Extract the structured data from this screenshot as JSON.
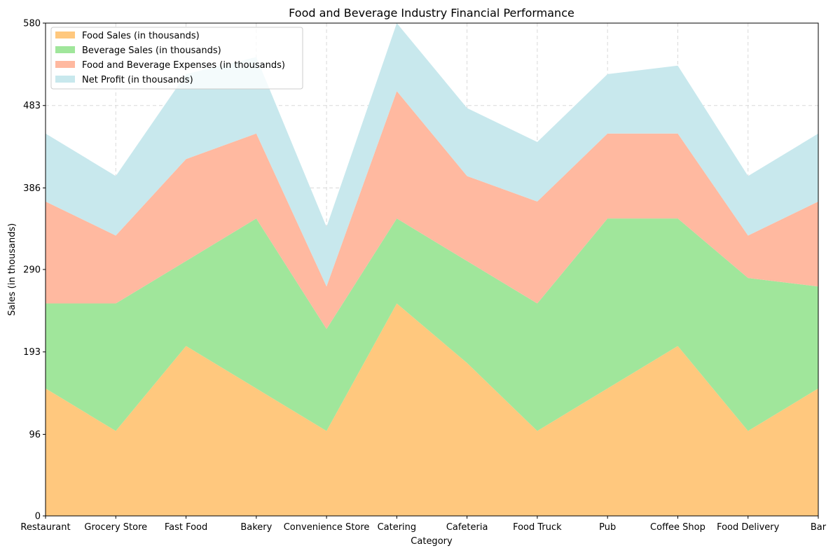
{
  "chart_data": {
    "type": "area",
    "stacked": true,
    "title": "Food and Beverage Industry Financial Performance",
    "xlabel": "Category",
    "ylabel": "Sales (in thousands)",
    "categories": [
      "Restaurant",
      "Grocery Store",
      "Fast Food",
      "Bakery",
      "Convenience Store",
      "Catering",
      "Cafeteria",
      "Food Truck",
      "Pub",
      "Coffee Shop",
      "Food Delivery",
      "Bar"
    ],
    "yticks": [
      "0",
      "96",
      "193",
      "290",
      "386",
      "483",
      "580"
    ],
    "ylim": [
      0,
      580
    ],
    "grid": true,
    "legend_position": "upper-left",
    "series": [
      {
        "name": "Food Sales (in thousands)",
        "color": "#ffc87e",
        "values": [
          150,
          100,
          200,
          150,
          100,
          250,
          180,
          100,
          150,
          200,
          100,
          150
        ]
      },
      {
        "name": "Beverage Sales (in thousands)",
        "color": "#a0e69b",
        "values": [
          100,
          150,
          100,
          200,
          120,
          100,
          120,
          150,
          200,
          150,
          180,
          120
        ]
      },
      {
        "name": "Food and Beverage Expenses (in thousands)",
        "color": "#ffb9a0",
        "values": [
          120,
          80,
          120,
          100,
          50,
          150,
          100,
          120,
          100,
          100,
          50,
          100
        ]
      },
      {
        "name": "Net Profit (in thousands)",
        "color": "#c8e8ed",
        "values": [
          80,
          70,
          100,
          90,
          70,
          80,
          80,
          70,
          70,
          80,
          70,
          80
        ]
      }
    ]
  }
}
